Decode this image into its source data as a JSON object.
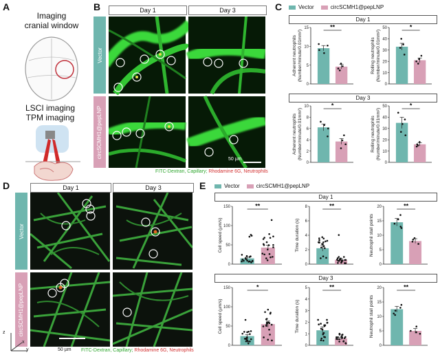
{
  "panels": {
    "A": {
      "label": "A",
      "title_line1": "Imaging",
      "title_line2": "cranial window",
      "lsci": "LSCI imaging",
      "tpm": "TPM imaging"
    },
    "B": {
      "label": "B",
      "day1": "Day 1",
      "day3": "Day 3",
      "row1": "Vector",
      "row2": "circSCMH1@pepLNP",
      "scalebar": "50 µm",
      "caption_green": "FITC-Dextran, Capillary;",
      "caption_red": "Rhodamine 6G, Neutrophils"
    },
    "C": {
      "label": "C"
    },
    "D": {
      "label": "D",
      "day1": "Day 1",
      "day3": "Day 3",
      "row1": "Vector",
      "row2": "circSCMH1@pepLNP",
      "scalebar": "50 µm",
      "caption_green": "FITC-Dextran, Capillary;",
      "caption_red": "Rhodamine 6G, Neutrophils",
      "axis_x": "x",
      "axis_y": "y",
      "axis_z": "z"
    },
    "E": {
      "label": "E"
    }
  },
  "legend": {
    "vector": "Vector",
    "treat": "circSCMH1@pepLNP",
    "vector_color": "#6fb6ae",
    "treat_color": "#d8a0b6"
  },
  "groups": {
    "C_day1": "Day 1",
    "C_day3": "Day 3",
    "E_day1": "Day 1",
    "E_day3": "Day 3"
  },
  "chart_data": [
    {
      "id": "C-d1-adherent",
      "type": "bar",
      "group": "Day 1",
      "categories": [
        "Vector",
        "circSCMH1@pepLNP"
      ],
      "values": [
        9.5,
        4.6
      ],
      "errors": [
        0.7,
        0.6
      ],
      "ylabel_line1": "Adherent neutrophils",
      "ylabel_line2": "(Number/minute/0.01mm²)",
      "ylim": [
        0,
        15
      ],
      "yticks": [
        0,
        5,
        10,
        15
      ],
      "sig": "**",
      "points": [
        [
          10.6,
          10.2,
          9.0,
          8.2
        ],
        [
          5.4,
          4.7,
          4.1,
          3.6
        ]
      ]
    },
    {
      "id": "C-d1-rolling",
      "type": "bar",
      "group": "Day 1",
      "categories": [
        "Vector",
        "circSCMH1@pepLNP"
      ],
      "values": [
        33,
        21
      ],
      "errors": [
        3,
        2
      ],
      "ylabel_line1": "Rolling neutrophils",
      "ylabel_line2": "(Number/minute/0.01mm²)",
      "ylim": [
        0,
        50
      ],
      "yticks": [
        0,
        10,
        20,
        30,
        40,
        50
      ],
      "sig": "*",
      "points": [
        [
          40,
          35,
          32,
          26
        ],
        [
          25,
          22,
          20,
          18
        ]
      ]
    },
    {
      "id": "C-d3-adherent",
      "type": "bar",
      "group": "Day 3",
      "categories": [
        "Vector",
        "circSCMH1@pepLNP"
      ],
      "values": [
        6.2,
        3.7
      ],
      "errors": [
        0.6,
        0.5
      ],
      "ylabel_line1": "Adherent neutrophils",
      "ylabel_line2": "(Number/minute/0.01mm²)",
      "ylim": [
        0,
        10
      ],
      "yticks": [
        0,
        2,
        4,
        6,
        8,
        10
      ],
      "sig": "*",
      "points": [
        [
          7.2,
          6.6,
          6.0,
          4.6
        ],
        [
          4.8,
          3.9,
          3.2,
          2.5
        ]
      ]
    },
    {
      "id": "C-d3-rolling",
      "type": "bar",
      "group": "Day 3",
      "categories": [
        "Vector",
        "circSCMH1@pepLNP"
      ],
      "values": [
        35,
        16
      ],
      "errors": [
        5,
        1.5
      ],
      "ylabel_line1": "Rolling neutrophils",
      "ylabel_line2": "(Number/minute/0.01mm²)",
      "ylim": [
        0,
        50
      ],
      "yticks": [
        0,
        10,
        20,
        30,
        40,
        50
      ],
      "sig": "*",
      "points": [
        [
          44,
          38,
          34,
          27,
          24
        ],
        [
          18,
          16,
          15,
          14
        ]
      ]
    },
    {
      "id": "E-d1-speed",
      "type": "bar",
      "group": "Day 1",
      "categories": [
        "Vector",
        "circSCMH1@pepLNP"
      ],
      "values": [
        15,
        43
      ],
      "errors": [
        3,
        6
      ],
      "ylabel_line1": "Cell speed (µm/s)",
      "ylim": [
        0,
        150
      ],
      "yticks": [
        0,
        50,
        100,
        150
      ],
      "sig": "**",
      "npoints": [
        18,
        20
      ]
    },
    {
      "id": "E-d1-duration",
      "type": "bar",
      "group": "Day 1",
      "categories": [
        "Vector",
        "circSCMH1@pepLNP"
      ],
      "values": [
        2.2,
        0.6
      ],
      "errors": [
        0.4,
        0.15
      ],
      "ylabel_line1": "Time duration (s)",
      "ylim": [
        0,
        8
      ],
      "yticks": [
        0,
        2,
        4,
        6,
        8
      ],
      "sig": "**",
      "npoints": [
        18,
        20
      ]
    },
    {
      "id": "E-d1-stall",
      "type": "bar",
      "group": "Day 1",
      "categories": [
        "Vector",
        "circSCMH1@pepLNP"
      ],
      "values": [
        14.5,
        8
      ],
      "errors": [
        1.3,
        0.8
      ],
      "ylabel_line1": "Neutrophil stall points",
      "ylim": [
        0,
        20
      ],
      "yticks": [
        0,
        5,
        10,
        15,
        20
      ],
      "sig": "**",
      "points": [
        [
          17,
          15.5,
          14,
          13,
          12.5
        ],
        [
          9,
          8.5,
          7.8,
          7
        ]
      ]
    },
    {
      "id": "E-d3-speed",
      "type": "bar",
      "group": "Day 3",
      "categories": [
        "Vector",
        "circSCMH1@pepLNP"
      ],
      "values": [
        24,
        55
      ],
      "errors": [
        4,
        8
      ],
      "ylabel_line1": "Cell speed (µm/s)",
      "ylim": [
        0,
        150
      ],
      "yticks": [
        0,
        50,
        100,
        150
      ],
      "sig": "*",
      "npoints": [
        18,
        20
      ]
    },
    {
      "id": "E-d3-duration",
      "type": "bar",
      "group": "Day 3",
      "categories": [
        "Vector",
        "circSCMH1@pepLNP"
      ],
      "values": [
        1.3,
        0.6
      ],
      "errors": [
        0.3,
        0.1
      ],
      "ylabel_line1": "Time duration (s)",
      "ylim": [
        0,
        5
      ],
      "yticks": [
        0,
        1,
        2,
        3,
        4,
        5
      ],
      "sig": "**",
      "npoints": [
        18,
        20
      ]
    },
    {
      "id": "E-d3-stall",
      "type": "bar",
      "group": "Day 3",
      "categories": [
        "Vector",
        "circSCMH1@pepLNP"
      ],
      "values": [
        12.5,
        5
      ],
      "errors": [
        1,
        0.8
      ],
      "ylabel_line1": "Neutrophil stall points",
      "ylim": [
        0,
        20
      ],
      "yticks": [
        0,
        5,
        10,
        15,
        20
      ],
      "sig": "**",
      "points": [
        [
          14,
          13,
          12,
          11,
          10.5
        ],
        [
          6.5,
          5,
          4.5,
          4
        ]
      ]
    }
  ]
}
